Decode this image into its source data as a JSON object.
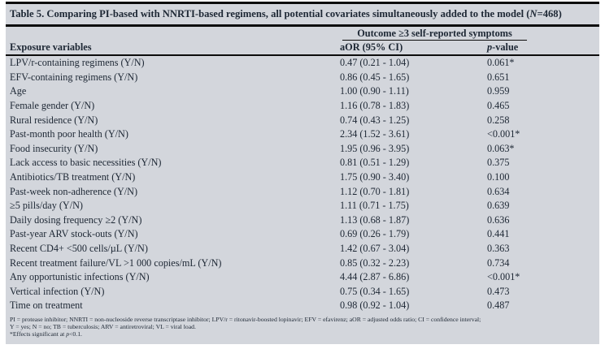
{
  "table": {
    "title": {
      "prefix": "Table 5. Comparing PI-based with NNRTI-based regimens, all potential covariates simultaneously added to the model (",
      "n_italic": "N",
      "suffix": "=468)"
    },
    "outcome_header": "Outcome ≥3 self-reported symptoms",
    "columns": {
      "exposure": "Exposure variables",
      "aor": "aOR (95% CI)",
      "p_italic": "p",
      "p_suffix": "-value"
    },
    "rows": [
      {
        "label": "LPV/r-containing regimens (Y/N)",
        "aor": "0.47 (0.21 - 1.04)",
        "p": "0.061*"
      },
      {
        "label": "EFV-containing regimens (Y/N)",
        "aor": "0.86 (0.45 - 1.65)",
        "p": "0.651"
      },
      {
        "label": "Age",
        "aor": "1.00 (0.90 - 1.11)",
        "p": "0.959"
      },
      {
        "label": "Female gender (Y/N)",
        "aor": "1.16 (0.78 - 1.83)",
        "p": "0.465"
      },
      {
        "label": "Rural residence (Y/N)",
        "aor": "0.74 (0.43 - 1.25)",
        "p": "0.258"
      },
      {
        "label": "Past-month poor health (Y/N)",
        "aor": "2.34 (1.52 - 3.61)",
        "p": "<0.001*"
      },
      {
        "label": "Food insecurity (Y/N)",
        "aor": "1.95 (0.96 - 3.95)",
        "p": "0.063*"
      },
      {
        "label": "Lack access to basic necessities (Y/N)",
        "aor": "0.81 (0.51 - 1.29)",
        "p": "0.375"
      },
      {
        "label": "Antibiotics/TB treatment (Y/N)",
        "aor": "1.75 (0.90 - 3.40)",
        "p": "0.100"
      },
      {
        "label": "Past-week non-adherence (Y/N)",
        "aor": "1.12 (0.70 - 1.81)",
        "p": "0.634"
      },
      {
        "label": "≥5 pills/day (Y/N)",
        "aor": "1.11 (0.71 - 1.75)",
        "p": "0.639"
      },
      {
        "label": "Daily dosing frequency ≥2 (Y/N)",
        "aor": "1.13 (0.68 - 1.87)",
        "p": "0.636"
      },
      {
        "label": "Past-year ARV stock-outs (Y/N)",
        "aor": "0.69 (0.26 - 1.79)",
        "p": "0.441"
      },
      {
        "label": "Recent CD4+ <500 cells/µL (Y/N)",
        "aor": "1.42 (0.67 - 3.04)",
        "p": "0.363"
      },
      {
        "label": "Recent treatment failure/VL >1 000 copies/mL (Y/N)",
        "aor": "0.85 (0.32 - 2.23)",
        "p": "0.734"
      },
      {
        "label": "Any opportunistic infections (Y/N)",
        "aor": "4.44 (2.87 - 6.86)",
        "p": "<0.001*"
      },
      {
        "label": "Vertical infection (Y/N)",
        "aor": "0.75 (0.34 - 1.65)",
        "p": "0.473"
      },
      {
        "label": "Time on treatment",
        "aor": "0.98 (0.92 - 1.04)",
        "p": "0.487"
      }
    ],
    "footnotes": {
      "line1": "PI = protease inhibitor; NNRTI = non-nucleoside reverse transcriptase inhibitor; LPV/r = ritonavir-boosted lopinavir; EFV = efavirenz; aOR = adjusted odds ratio; CI = confidence interval;",
      "line2": "Y = yes; N = no; TB = tuberculosis; ARV = antiretroviral; VL = viral load.",
      "line3_prefix": "*Effects significant at ",
      "line3_p": "p",
      "line3_suffix": "<0.1."
    },
    "colors": {
      "panel_bg": "#d3d6dc",
      "text_color": "#1d2734",
      "rule_color": "#0c0c0c"
    }
  }
}
